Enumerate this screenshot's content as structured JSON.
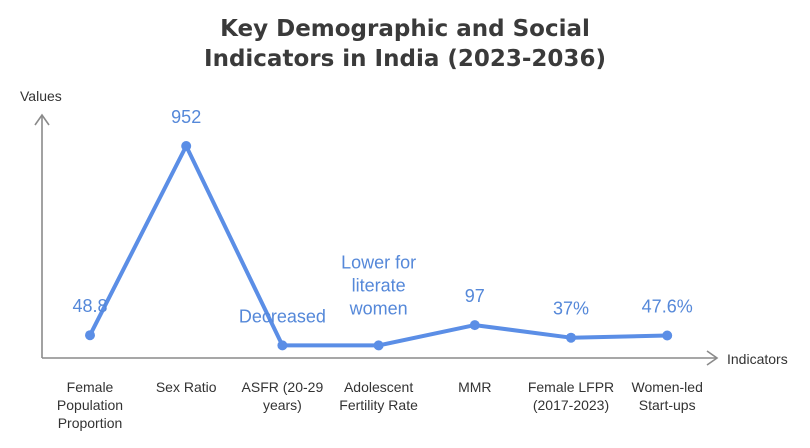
{
  "chart_data": {
    "type": "line",
    "title": [
      "Key Demographic and Social",
      "Indicators in India (2023-2036)"
    ],
    "xlabel": "Indicators",
    "ylabel": "Values",
    "grid": false,
    "legend": "none",
    "color": "#5b8ee6",
    "categories": [
      [
        "Female",
        "Population",
        "Proportion"
      ],
      [
        "Sex Ratio"
      ],
      [
        "ASFR (20-29",
        "years)"
      ],
      [
        "Adolescent",
        "Fertility Rate"
      ],
      [
        "MMR"
      ],
      [
        "Female LFPR",
        "(2017-2023)"
      ],
      [
        "Women-led",
        "Start-ups"
      ]
    ],
    "values": [
      48.8,
      952,
      0,
      0,
      97,
      37,
      47.6
    ],
    "data_labels": [
      [
        "48.8"
      ],
      [
        "952"
      ],
      [
        "Decreased"
      ],
      [
        "Lower for",
        "literate",
        "women"
      ],
      [
        "97"
      ],
      [
        "37%"
      ],
      [
        "47.6%"
      ]
    ],
    "ylim": [
      -60,
      1100
    ]
  }
}
